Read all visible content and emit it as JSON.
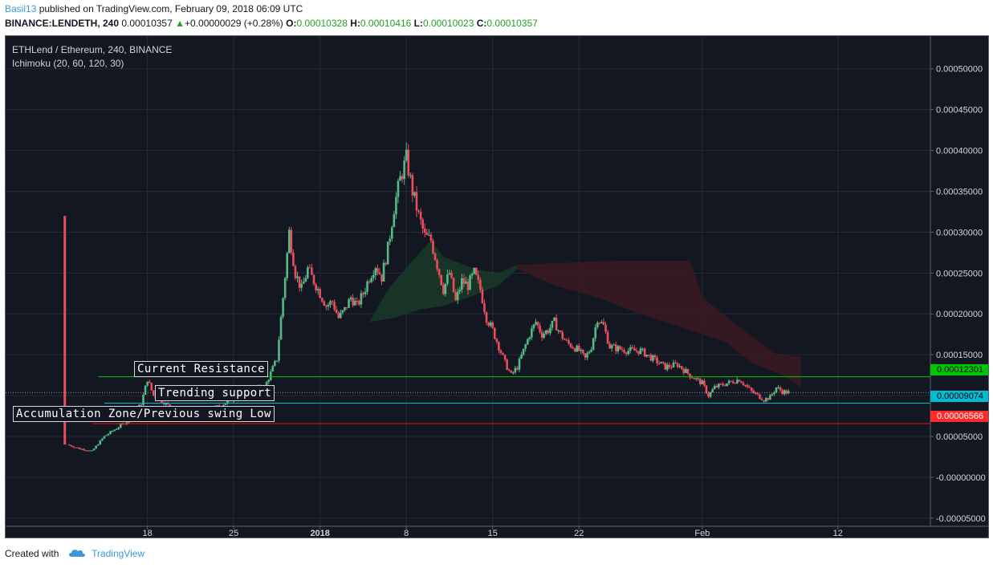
{
  "header": {
    "user": "Basil13",
    "published": "published on TradingView.com, February 09, 2018 06:09 UTC"
  },
  "ohlc": {
    "symbol": "BINANCE:LENDETH, 240",
    "last": "0.00010357",
    "change": "+0.00000029 (+0.28%)",
    "o_label": "O:",
    "o": "0.00010328",
    "h_label": "H:",
    "h": "0.00010416",
    "l_label": "L:",
    "l": "0.00010023",
    "c_label": "C:",
    "c": "0.00010357"
  },
  "legend": {
    "pair": "ETHLend / Ethereum, 240, BINANCE",
    "indicator": "Ichimoku (20, 60, 120, 30)"
  },
  "annotations": {
    "resistance": "Current Resistance",
    "support": "Trending support",
    "accumulation": "Accumulation Zone/Previous swing Low"
  },
  "price_tags": {
    "resistance": "0.00012301",
    "support": "0.00009074",
    "accumulation": "0.00006566"
  },
  "footer": {
    "created": "Created with",
    "brand": "TradingView"
  },
  "colors": {
    "background": "#131722",
    "up": "#53b987",
    "down": "#eb4d5c",
    "resistance": "#00c800",
    "support": "#00bcd4",
    "accumulation": "#ff0000",
    "cloud_bull": "#1a3a27",
    "cloud_bear": "#3b1a22"
  },
  "chart_data": {
    "type": "candlestick",
    "title": "ETHLend / Ethereum, 240, BINANCE",
    "ylim": [
      -6e-05,
      0.00054
    ],
    "y_ticks": [
      "0.00050000",
      "0.00045000",
      "0.00040000",
      "0.00035000",
      "0.00030000",
      "0.00025000",
      "0.00020000",
      "0.00015000",
      "0.00010000",
      "0.00005000",
      "-0.00000000",
      "-0.00005000"
    ],
    "y_tick_values": [
      0.0005,
      0.00045,
      0.0004,
      0.00035,
      0.0003,
      0.00025,
      0.0002,
      0.00015,
      0.0001,
      5e-05,
      0,
      -5e-05
    ],
    "x_ticks": [
      {
        "label": "18",
        "day": 18,
        "bold": false
      },
      {
        "label": "25",
        "day": 25,
        "bold": false
      },
      {
        "label": "2018",
        "day": 32,
        "bold": true
      },
      {
        "label": "8",
        "day": 39,
        "bold": false
      },
      {
        "label": "15",
        "day": 46,
        "bold": false
      },
      {
        "label": "22",
        "day": 53,
        "bold": false
      },
      {
        "label": "Feb",
        "day": 63,
        "bold": false
      },
      {
        "label": "12",
        "day": 74,
        "bold": false
      }
    ],
    "x_unit": "day (Dec 2017 day number; Jan = 31+d, Feb = 62+d)",
    "x_range": [
      6.5,
      81.5
    ],
    "close_path": [
      [
        11.3,
        0.00032
      ],
      [
        11.5,
        4e-05
      ],
      [
        12.5,
        3.5e-05
      ],
      [
        13.5,
        3.2e-05
      ],
      [
        14.5,
        5e-05
      ],
      [
        15.5,
        6e-05
      ],
      [
        16.5,
        7e-05
      ],
      [
        17.5,
        9e-05
      ],
      [
        18.0,
        0.00012
      ],
      [
        18.5,
        0.0001
      ],
      [
        19.5,
        9e-05
      ],
      [
        20.5,
        7.8e-05
      ],
      [
        21.5,
        8.2e-05
      ],
      [
        22.5,
        7.5e-05
      ],
      [
        23.5,
        8.5e-05
      ],
      [
        24.5,
        9.2e-05
      ],
      [
        25.5,
        0.0001
      ],
      [
        26.5,
        0.000108
      ],
      [
        27.5,
        0.00011
      ],
      [
        28.5,
        0.000145
      ],
      [
        29.0,
        0.00022
      ],
      [
        29.5,
        0.0003
      ],
      [
        30.0,
        0.00025
      ],
      [
        30.5,
        0.00023
      ],
      [
        31.0,
        0.000255
      ],
      [
        31.5,
        0.00024
      ],
      [
        32.0,
        0.000225
      ],
      [
        32.5,
        0.00021
      ],
      [
        33.0,
        0.000215
      ],
      [
        33.5,
        0.000195
      ],
      [
        34.0,
        0.000205
      ],
      [
        34.5,
        0.00022
      ],
      [
        35.0,
        0.00021
      ],
      [
        35.5,
        0.000225
      ],
      [
        36.0,
        0.000245
      ],
      [
        36.5,
        0.00026
      ],
      [
        37.0,
        0.000245
      ],
      [
        37.5,
        0.00028
      ],
      [
        38.0,
        0.00033
      ],
      [
        38.5,
        0.000365
      ],
      [
        39.0,
        0.00039
      ],
      [
        39.5,
        0.00035
      ],
      [
        40.0,
        0.00032
      ],
      [
        40.5,
        0.000295
      ],
      [
        41.0,
        0.00029
      ],
      [
        41.5,
        0.00026
      ],
      [
        42.0,
        0.00023
      ],
      [
        42.5,
        0.00025
      ],
      [
        43.0,
        0.000215
      ],
      [
        43.5,
        0.00024
      ],
      [
        44.0,
        0.000235
      ],
      [
        44.5,
        0.00025
      ],
      [
        45.0,
        0.00023
      ],
      [
        45.5,
        0.000195
      ],
      [
        46.0,
        0.00018
      ],
      [
        46.5,
        0.00016
      ],
      [
        47.0,
        0.00014
      ],
      [
        47.5,
        0.000125
      ],
      [
        48.0,
        0.000135
      ],
      [
        48.5,
        0.000155
      ],
      [
        49.0,
        0.000175
      ],
      [
        49.5,
        0.00019
      ],
      [
        50.0,
        0.000175
      ],
      [
        50.5,
        0.00018
      ],
      [
        51.0,
        0.00019
      ],
      [
        51.5,
        0.000175
      ],
      [
        52.0,
        0.000165
      ],
      [
        52.5,
        0.00016
      ],
      [
        53.0,
        0.000155
      ],
      [
        53.5,
        0.000145
      ],
      [
        54.0,
        0.00016
      ],
      [
        54.5,
        0.000195
      ],
      [
        55.0,
        0.000185
      ],
      [
        55.5,
        0.00016
      ],
      [
        56.0,
        0.000158
      ],
      [
        57.0,
        0.000155
      ],
      [
        58.0,
        0.000155
      ],
      [
        59.0,
        0.000145
      ],
      [
        60.0,
        0.000135
      ],
      [
        61.0,
        0.000138
      ],
      [
        62.0,
        0.000125
      ],
      [
        63.0,
        0.000115
      ],
      [
        63.5,
        0.0001
      ],
      [
        64.0,
        0.00011
      ],
      [
        65.0,
        0.000115
      ],
      [
        66.0,
        0.00012
      ],
      [
        67.0,
        0.000105
      ],
      [
        68.0,
        9.5e-05
      ],
      [
        68.5,
        9.8e-05
      ],
      [
        69.0,
        0.00011
      ],
      [
        69.5,
        0.000105
      ],
      [
        70.0,
        0.0001036
      ]
    ],
    "ichimoku_cloud": [
      {
        "kind": "bullish",
        "points": [
          [
            36.0,
            0.00019
          ],
          [
            37.5,
            0.00023
          ],
          [
            39.5,
            0.000265
          ],
          [
            41.0,
            0.00029
          ],
          [
            42.0,
            0.00027
          ],
          [
            44.5,
            0.000255
          ],
          [
            46.5,
            0.00025
          ],
          [
            48.0,
            0.00026
          ],
          [
            48.0,
            0.000255
          ],
          [
            46.5,
            0.000235
          ],
          [
            44.0,
            0.00022
          ],
          [
            42.0,
            0.00021
          ],
          [
            40.0,
            0.000205
          ],
          [
            38.0,
            0.000195
          ],
          [
            36.0,
            0.00019
          ]
        ]
      },
      {
        "kind": "bearish",
        "points": [
          [
            48.0,
            0.00026
          ],
          [
            56.0,
            0.000265
          ],
          [
            62.0,
            0.000265
          ],
          [
            63.0,
            0.00022
          ],
          [
            65.5,
            0.00019
          ],
          [
            69.0,
            0.00015
          ],
          [
            71.0,
            0.000148
          ],
          [
            71.0,
            0.00011
          ],
          [
            69.5,
            0.000125
          ],
          [
            67.0,
            0.00014
          ],
          [
            65.0,
            0.000165
          ],
          [
            62.0,
            0.00018
          ],
          [
            58.0,
            0.0002
          ],
          [
            54.5,
            0.00022
          ],
          [
            51.0,
            0.000235
          ],
          [
            48.0,
            0.000255
          ]
        ]
      }
    ],
    "horizontal_lines": [
      {
        "name": "Current Resistance",
        "value": 0.00012301,
        "from_day": 14.0
      },
      {
        "name": "Trending support",
        "value": 9.074e-05,
        "from_day": 14.5
      },
      {
        "name": "Accumulation Zone/Previous swing Low",
        "value": 6.566e-05,
        "from_day": 13.5
      }
    ],
    "current_price": 0.00010357,
    "grid": true
  }
}
